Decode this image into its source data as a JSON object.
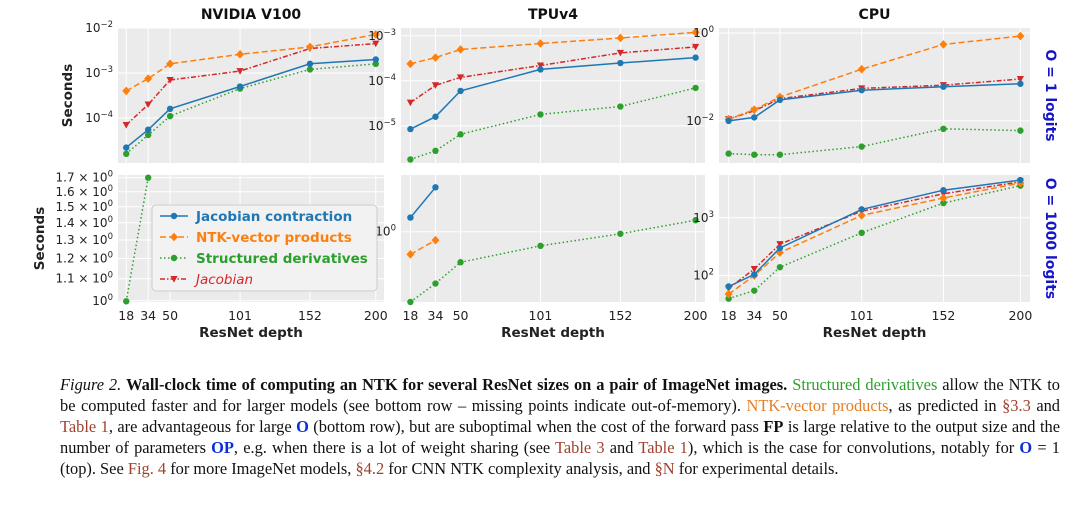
{
  "chart_data": {
    "type": "line",
    "x": [
      18,
      34,
      50,
      101,
      152,
      200
    ],
    "xlabel": "ResNet depth",
    "ylabel": "Seconds",
    "columns": [
      "NVIDIA V100",
      "TPUv4",
      "CPU"
    ],
    "row_labels": [
      "O = 1 logits",
      "O = 1000 logits"
    ],
    "legend": {
      "placement": "inside bottom-left panel",
      "entries": [
        "Jacobian contraction",
        "NTK-vector products",
        "Structured derivatives",
        "Jacobian"
      ]
    },
    "colors": {
      "jac": "#1f77b4",
      "ntvp": "#ff7f0e",
      "sd": "#2ca02c",
      "jacobian": "#d62728"
    },
    "panels": [
      {
        "device": "NVIDIA V100",
        "logits": 1,
        "yscale": "log",
        "ylim": [
          1e-05,
          0.01
        ],
        "yticks": [
          {
            "v": 0.01,
            "b": "10",
            "e": "−2"
          },
          {
            "v": 0.001,
            "b": "10",
            "e": "−3"
          },
          {
            "v": 0.0001,
            "b": "10",
            "e": "−4"
          }
        ],
        "series": [
          {
            "name": "Jacobian contraction",
            "key": "jac",
            "values": [
              2.2e-05,
              5.5e-05,
              0.00016,
              0.0005,
              0.0016,
              0.002
            ]
          },
          {
            "name": "NTK-vector products",
            "key": "ntvp",
            "values": [
              0.0004,
              0.00075,
              0.0016,
              0.0026,
              0.0038,
              0.0072
            ]
          },
          {
            "name": "Structured derivatives",
            "key": "sd",
            "values": [
              1.6e-05,
              4.2e-05,
              0.00011,
              0.00045,
              0.0012,
              0.0016
            ]
          },
          {
            "name": "Jacobian",
            "key": "jacobian",
            "values": [
              7e-05,
              0.0002,
              0.0007,
              0.0011,
              0.0035,
              0.0045
            ]
          }
        ]
      },
      {
        "device": "TPUv4",
        "logits": 1,
        "yscale": "log",
        "ylim": [
          1.5e-06,
          0.0015
        ],
        "yticks": [
          {
            "v": 0.001,
            "b": "10",
            "e": "−3"
          },
          {
            "v": 0.0001,
            "b": "10",
            "e": "−4"
          },
          {
            "v": 1e-05,
            "b": "10",
            "e": "−5"
          }
        ],
        "series": [
          {
            "name": "Jacobian contraction",
            "key": "jac",
            "values": [
              8.5e-06,
              1.6e-05,
              6e-05,
              0.00018,
              0.00025,
              0.00033
            ]
          },
          {
            "name": "NTK-vector products",
            "key": "ntvp",
            "values": [
              0.00024,
              0.00033,
              0.0005,
              0.00068,
              0.0009,
              0.0012
            ]
          },
          {
            "name": "Structured derivatives",
            "key": "sd",
            "values": [
              1.8e-06,
              2.8e-06,
              6.5e-06,
              1.8e-05,
              2.7e-05,
              7e-05
            ]
          },
          {
            "name": "Jacobian",
            "key": "jacobian",
            "values": [
              3.3e-05,
              8e-05,
              0.00012,
              0.00022,
              0.00042,
              0.00057
            ]
          }
        ]
      },
      {
        "device": "CPU",
        "logits": 1,
        "yscale": "log",
        "ylim": [
          0.0011,
          1.3
        ],
        "yticks": [
          {
            "v": 1,
            "b": "10",
            "e": "0"
          },
          {
            "v": 0.01,
            "b": "10",
            "e": "−2"
          }
        ],
        "series": [
          {
            "name": "Jacobian contraction",
            "key": "jac",
            "values": [
              0.01,
              0.012,
              0.03,
              0.05,
              0.06,
              0.07
            ]
          },
          {
            "name": "NTK-vector products",
            "key": "ntvp",
            "values": [
              0.011,
              0.018,
              0.035,
              0.15,
              0.55,
              0.85
            ]
          },
          {
            "name": "Structured derivatives",
            "key": "sd",
            "values": [
              0.0018,
              0.0017,
              0.0017,
              0.0026,
              0.0066,
              0.006
            ]
          },
          {
            "name": "Jacobian",
            "key": "jacobian",
            "values": [
              0.011,
              0.017,
              0.032,
              0.055,
              0.065,
              0.09
            ]
          }
        ]
      },
      {
        "device": "NVIDIA V100",
        "logits": 1000,
        "yscale": "log",
        "ylim": [
          0.995,
          1.72
        ],
        "yticks": [
          {
            "v": 1.7,
            "b": "1.7 × 10",
            "e": "0"
          },
          {
            "v": 1.6,
            "b": "1.6 × 10",
            "e": "0"
          },
          {
            "v": 1.5,
            "b": "1.5 × 10",
            "e": "0"
          },
          {
            "v": 1.4,
            "b": "1.4 × 10",
            "e": "0"
          },
          {
            "v": 1.3,
            "b": "1.3 × 10",
            "e": "0"
          },
          {
            "v": 1.2,
            "b": "1.2 × 10",
            "e": "0"
          },
          {
            "v": 1.1,
            "b": "1.1 × 10",
            "e": "0"
          },
          {
            "v": 1.0,
            "b": "10",
            "e": "0"
          }
        ],
        "series": [
          {
            "name": "Structured derivatives",
            "key": "sd",
            "values": [
              0.998,
              1.7,
              null,
              null,
              null,
              null
            ]
          }
        ]
      },
      {
        "device": "TPUv4",
        "logits": 1000,
        "yscale": "log",
        "ylim": [
          0.5,
          1.75
        ],
        "yticks": [
          {
            "v": 1.0,
            "b": "10",
            "e": "0"
          }
        ],
        "series": [
          {
            "name": "Jacobian contraction",
            "key": "jac",
            "values": [
              1.15,
              1.55,
              null,
              null,
              null,
              null
            ]
          },
          {
            "name": "NTK-vector products",
            "key": "ntvp",
            "values": [
              0.8,
              0.92,
              null,
              null,
              null,
              null
            ]
          },
          {
            "name": "Structured derivatives",
            "key": "sd",
            "values": [
              0.5,
              0.6,
              0.74,
              0.87,
              0.98,
              1.12
            ]
          }
        ]
      },
      {
        "device": "CPU",
        "logits": 1000,
        "yscale": "log",
        "ylim": [
          35,
          5500
        ],
        "yticks": [
          {
            "v": 1000,
            "b": "10",
            "e": "3"
          },
          {
            "v": 100,
            "b": "10",
            "e": "2"
          }
        ],
        "series": [
          {
            "name": "Jacobian contraction",
            "key": "jac",
            "values": [
              65,
              105,
              300,
              1400,
              3000,
              4500
            ]
          },
          {
            "name": "NTK-vector products",
            "key": "ntvp",
            "values": [
              48,
              100,
              250,
              1100,
              2200,
              4000
            ]
          },
          {
            "name": "Structured derivatives",
            "key": "sd",
            "values": [
              40,
              55,
              140,
              550,
              1800,
              3600
            ]
          },
          {
            "name": "Jacobian",
            "key": "jacobian",
            "values": [
              60,
              130,
              350,
              1300,
              2600,
              4200
            ]
          }
        ]
      }
    ]
  },
  "caption": {
    "label": "Figure 2.",
    "title": "Wall-clock time of computing an NTK for several ResNet sizes on a pair of ImageNet images.",
    "sd_text": "Structured derivatives",
    "t1": "allow the NTK to be computed faster and for larger models (see bottom row – missing points indicate out-of-memory).",
    "ntvp_text": "NTK-vector products",
    "t2": ", as predicted in",
    "ref_33": "§3.3",
    "t3": "and",
    "ref_table1": "Table 1",
    "t4": ", are advantageous for large",
    "O": "O",
    "t5": "(bottom row), but are suboptimal when the cost of the forward pass",
    "FP": "FP",
    "t6": "is large relative to the output size and the number of parameters",
    "OP": "OP",
    "t7": ", e.g. when there is a lot of weight sharing (see",
    "ref_table3": "Table 3",
    "t8": "and",
    "ref_table1b": "Table 1",
    "t9": "), which is the case for convolutions, notably for",
    "O2": "O",
    "t10": "= 1 (top). See",
    "ref_fig4": "Fig. 4",
    "t11": "for more ImageNet models,",
    "ref_42": "§4.2",
    "t12": "for CNN NTK complexity analysis, and",
    "ref_N": "§N",
    "t13": "for experimental details."
  }
}
